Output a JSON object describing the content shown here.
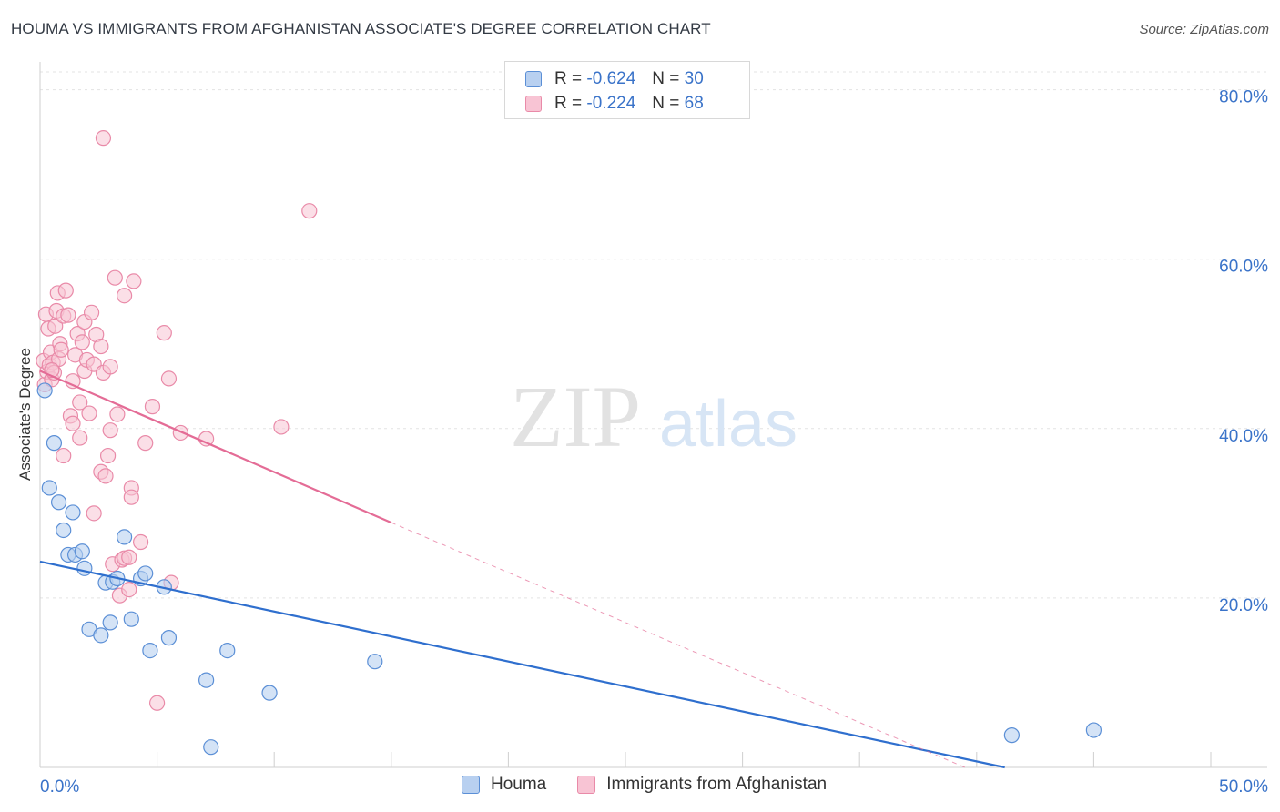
{
  "header": {
    "title": "HOUMA VS IMMIGRANTS FROM AFGHANISTAN ASSOCIATE'S DEGREE CORRELATION CHART",
    "source": "Source: ZipAtlas.com"
  },
  "watermark": {
    "zip": "ZIP",
    "atlas": "atlas"
  },
  "legend": {
    "r_label": "R = ",
    "n_label": "N = ",
    "houma": {
      "r": "-0.624",
      "n": "30"
    },
    "afghanistan": {
      "r": "-0.224",
      "n": "68"
    }
  },
  "colors": {
    "houma_fill": "#b8d0f0",
    "houma_stroke": "#5b8fd6",
    "houma_line": "#2f6fce",
    "afg_fill": "#f8c4d4",
    "afg_stroke": "#e98aa8",
    "afg_line": "#e46c96",
    "axis_label": "#3a73c9",
    "grid": "#e3e3e3"
  },
  "chart_data": {
    "type": "scatter",
    "title": "HOUMA VS IMMIGRANTS FROM AFGHANISTAN ASSOCIATE'S DEGREE CORRELATION CHART",
    "xlabel": "",
    "ylabel": "Associate's Degree",
    "xlim": [
      0,
      50
    ],
    "ylim": [
      0,
      82
    ],
    "x_tick_labels": [
      "0.0%",
      "50.0%"
    ],
    "y_ticks": [
      20,
      40,
      60,
      80
    ],
    "y_tick_labels": [
      "20.0%",
      "40.0%",
      "60.0%",
      "80.0%"
    ],
    "grid": true,
    "legend_position": "bottom",
    "series": [
      {
        "name": "Houma",
        "r": -0.624,
        "n": 30,
        "points": [
          [
            0.2,
            44.5
          ],
          [
            0.4,
            33.0
          ],
          [
            0.6,
            38.3
          ],
          [
            0.8,
            31.3
          ],
          [
            1.0,
            28.0
          ],
          [
            1.2,
            25.1
          ],
          [
            1.4,
            30.1
          ],
          [
            1.5,
            25.1
          ],
          [
            1.8,
            25.5
          ],
          [
            1.9,
            23.5
          ],
          [
            2.1,
            16.3
          ],
          [
            2.6,
            15.6
          ],
          [
            2.8,
            21.8
          ],
          [
            3.0,
            17.1
          ],
          [
            3.1,
            21.9
          ],
          [
            3.3,
            22.3
          ],
          [
            3.6,
            27.2
          ],
          [
            3.9,
            17.5
          ],
          [
            4.3,
            22.3
          ],
          [
            4.5,
            22.9
          ],
          [
            4.7,
            13.8
          ],
          [
            5.3,
            21.3
          ],
          [
            5.5,
            15.3
          ],
          [
            7.1,
            10.3
          ],
          [
            7.3,
            2.4
          ],
          [
            8.0,
            13.8
          ],
          [
            9.8,
            8.8
          ],
          [
            14.3,
            12.5
          ],
          [
            41.5,
            3.8
          ],
          [
            45.0,
            4.4
          ]
        ],
        "trend": {
          "x": [
            0,
            41.2
          ],
          "y": [
            24.3,
            0
          ]
        }
      },
      {
        "name": "Immigrants from Afghanistan",
        "r": -0.224,
        "n": 68,
        "points": [
          [
            0.15,
            48.0
          ],
          [
            0.2,
            45.2
          ],
          [
            0.25,
            53.5
          ],
          [
            0.3,
            46.7
          ],
          [
            0.35,
            51.8
          ],
          [
            0.4,
            47.5
          ],
          [
            0.45,
            49.0
          ],
          [
            0.5,
            45.8
          ],
          [
            0.55,
            47.8
          ],
          [
            0.6,
            46.6
          ],
          [
            0.65,
            52.1
          ],
          [
            0.7,
            53.9
          ],
          [
            0.75,
            56.0
          ],
          [
            0.8,
            48.2
          ],
          [
            0.85,
            50.0
          ],
          [
            0.9,
            49.3
          ],
          [
            1.0,
            53.3
          ],
          [
            1.0,
            36.8
          ],
          [
            1.1,
            56.3
          ],
          [
            1.2,
            53.4
          ],
          [
            1.3,
            41.5
          ],
          [
            1.4,
            45.6
          ],
          [
            1.4,
            40.6
          ],
          [
            1.5,
            48.7
          ],
          [
            1.6,
            51.2
          ],
          [
            1.7,
            43.1
          ],
          [
            1.7,
            38.9
          ],
          [
            1.8,
            50.2
          ],
          [
            1.9,
            52.6
          ],
          [
            1.9,
            46.8
          ],
          [
            2.0,
            48.1
          ],
          [
            2.1,
            41.8
          ],
          [
            2.2,
            53.7
          ],
          [
            2.3,
            30.0
          ],
          [
            2.3,
            47.6
          ],
          [
            2.4,
            51.1
          ],
          [
            2.6,
            49.7
          ],
          [
            2.6,
            34.9
          ],
          [
            2.7,
            74.3
          ],
          [
            2.7,
            46.6
          ],
          [
            2.8,
            34.4
          ],
          [
            2.9,
            36.8
          ],
          [
            3.0,
            47.3
          ],
          [
            3.0,
            39.8
          ],
          [
            3.1,
            24.0
          ],
          [
            3.2,
            57.8
          ],
          [
            3.3,
            41.7
          ],
          [
            3.4,
            20.3
          ],
          [
            3.5,
            24.5
          ],
          [
            3.6,
            24.7
          ],
          [
            3.6,
            55.7
          ],
          [
            3.8,
            24.8
          ],
          [
            3.8,
            21.0
          ],
          [
            3.9,
            33.0
          ],
          [
            3.9,
            31.9
          ],
          [
            4.0,
            57.4
          ],
          [
            4.3,
            26.6
          ],
          [
            4.5,
            38.3
          ],
          [
            4.8,
            42.6
          ],
          [
            5.0,
            7.6
          ],
          [
            5.3,
            51.3
          ],
          [
            5.5,
            45.9
          ],
          [
            5.6,
            21.8
          ],
          [
            6.0,
            39.5
          ],
          [
            7.1,
            38.8
          ],
          [
            10.3,
            40.2
          ],
          [
            11.5,
            65.7
          ],
          [
            0.5,
            46.9
          ]
        ],
        "trend": {
          "x": [
            0,
            15.0
          ],
          "y": [
            46.8,
            28.9
          ]
        },
        "trend_extension": {
          "x": [
            15.0,
            39.5
          ],
          "y": [
            28.9,
            0
          ]
        }
      }
    ]
  }
}
